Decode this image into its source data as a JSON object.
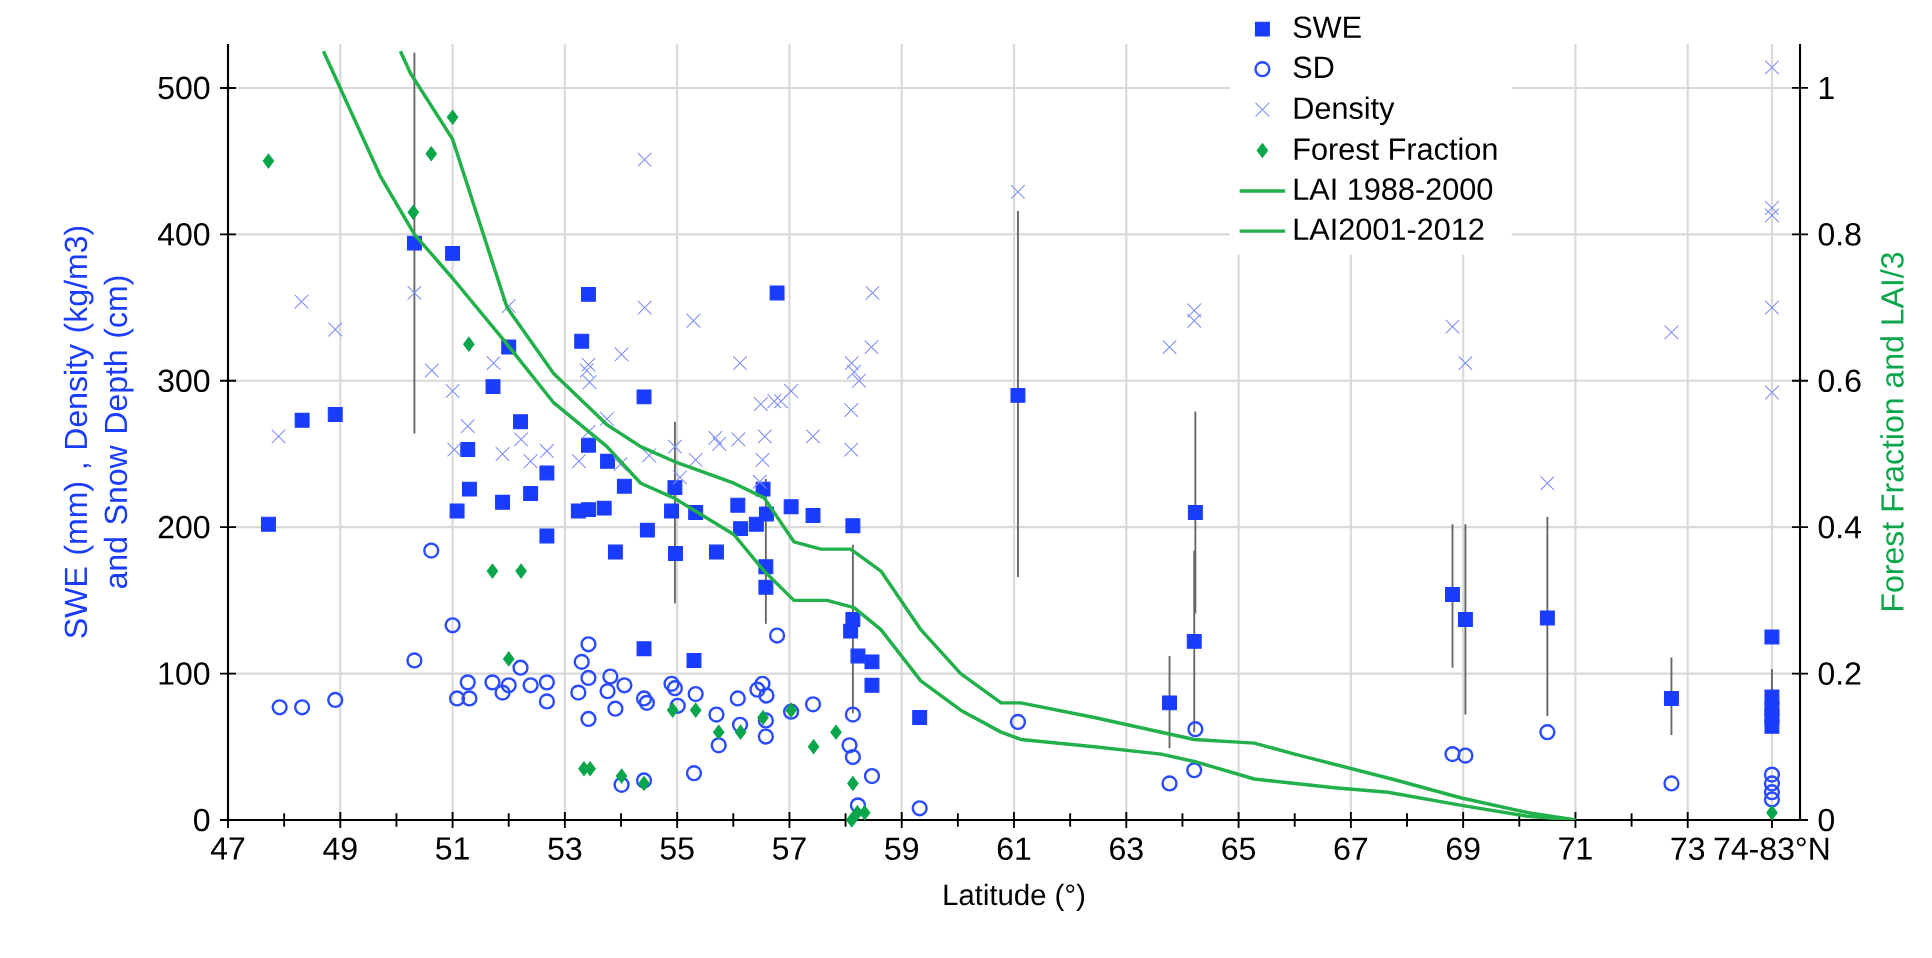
{
  "chart_data": {
    "type": "scatter",
    "xlabel": "Latitude (°)",
    "ylabel": "SWE (mm) , Density (kg/m3) and  Snow Depth (cm)",
    "y2label": "Forest Fraction and LAI/3",
    "xlim": [
      47,
      75
    ],
    "ylim": [
      0,
      530
    ],
    "y2lim": [
      0,
      1.06
    ],
    "xticks": [
      47,
      {
        "value": 48,
        "label": null
      },
      49,
      {
        "value": 50,
        "label": null
      },
      51,
      {
        "value": 52,
        "label": null
      },
      53,
      {
        "value": 54,
        "label": null
      },
      55,
      {
        "value": 56,
        "label": null
      },
      57,
      {
        "value": 58,
        "label": null
      },
      59,
      {
        "value": 60,
        "label": null
      },
      61,
      {
        "value": 62,
        "label": null
      },
      63,
      {
        "value": 64,
        "label": null
      },
      65,
      {
        "value": 66,
        "label": null
      },
      67,
      {
        "value": 68,
        "label": null
      },
      69,
      {
        "value": 70,
        "label": null
      },
      71,
      {
        "value": 72,
        "label": null
      },
      73,
      {
        "value": 74.5,
        "label": "74-83°N"
      }
    ],
    "yticks": [
      0,
      100,
      200,
      300,
      400,
      500
    ],
    "y2ticks": [
      0,
      0.2,
      0.4,
      0.6,
      0.8,
      1
    ],
    "grid": true,
    "legend": "top",
    "series": [
      {
        "name": "SWE",
        "marker": "square",
        "color": "#1a3cff",
        "x": [
          47.72,
          48.32,
          48.91,
          50.32,
          51.0,
          52.0,
          51.72,
          52.21,
          51.27,
          51.08,
          51.3,
          51.89,
          52.39,
          52.68,
          52.68,
          53.42,
          53.3,
          53.42,
          53.24,
          53.42,
          53.7,
          53.76,
          54.06,
          53.9,
          54.41,
          54.41,
          54.47,
          54.96,
          54.9,
          54.97,
          55.33,
          55.3,
          55.7,
          56.08,
          56.13,
          56.41,
          56.53,
          56.59,
          56.58,
          56.58,
          56.78,
          57.03,
          57.42,
          58.13,
          58.13,
          58.09,
          58.22,
          58.47,
          58.47,
          59.32,
          61.07,
          64.23,
          64.21,
          63.77,
          68.81,
          69.04,
          70.5,
          72.71,
          74.5,
          74.5,
          74.5,
          74.5,
          74.5
        ],
        "values": [
          202,
          273,
          277,
          394,
          387,
          323,
          296,
          272,
          253,
          211,
          226,
          217,
          223,
          237,
          194,
          359,
          327,
          256,
          211,
          212,
          213,
          245,
          228,
          183,
          289,
          117,
          198,
          227,
          211,
          182,
          210,
          109,
          183,
          215,
          199,
          202,
          226,
          209,
          173,
          159,
          360,
          214,
          208,
          201,
          137,
          129,
          112,
          108,
          92,
          70,
          290,
          210,
          122,
          80,
          154,
          137,
          138,
          83,
          125,
          84,
          76,
          71,
          64
        ],
        "errors": [
          null,
          null,
          null,
          [
            264,
            524
          ],
          null,
          null,
          null,
          null,
          null,
          null,
          null,
          null,
          null,
          null,
          null,
          null,
          null,
          null,
          null,
          null,
          null,
          null,
          null,
          null,
          null,
          null,
          null,
          [
            148,
            272
          ],
          null,
          null,
          null,
          null,
          null,
          null,
          null,
          null,
          null,
          null,
          [
            134,
            233
          ],
          null,
          null,
          null,
          null,
          null,
          [
            73,
            188
          ],
          null,
          null,
          null,
          null,
          null,
          [
            166,
            416
          ],
          [
            141,
            279
          ],
          [
            60,
            184
          ],
          [
            49,
            112
          ],
          [
            104,
            202
          ],
          [
            72,
            202
          ],
          [
            71,
            207
          ],
          [
            58,
            111
          ],
          null,
          [
            84,
            103
          ],
          null,
          null,
          null
        ]
      },
      {
        "name": "SD",
        "marker": "circle",
        "color": "#2a4bff",
        "x": [
          47.92,
          48.32,
          48.91,
          50.32,
          50.62,
          51.0,
          51.08,
          51.3,
          51.27,
          51.71,
          51.89,
          52.0,
          52.21,
          52.39,
          52.68,
          52.68,
          53.24,
          53.3,
          53.42,
          53.42,
          53.42,
          53.81,
          53.76,
          53.9,
          54.06,
          54.01,
          54.41,
          54.46,
          54.41,
          54.9,
          54.96,
          55.01,
          55.33,
          55.3,
          55.7,
          55.74,
          56.08,
          56.12,
          56.43,
          56.52,
          56.59,
          56.58,
          56.58,
          56.78,
          57.03,
          57.42,
          58.13,
          58.07,
          58.13,
          58.22,
          58.47,
          59.32,
          61.07,
          64.23,
          64.21,
          63.77,
          68.81,
          69.04,
          70.5,
          72.71,
          74.5,
          74.5,
          74.5,
          74.5
        ],
        "values": [
          77,
          77,
          82,
          109,
          184,
          133,
          83,
          83,
          94,
          94,
          87,
          92,
          104,
          92,
          94,
          81,
          87,
          108,
          120,
          97,
          69,
          98,
          88,
          76,
          92,
          24,
          83,
          80,
          27,
          93,
          90,
          78,
          86,
          32,
          72,
          51,
          83,
          65,
          89,
          93,
          85,
          68,
          57,
          126,
          74,
          79,
          72,
          51,
          43,
          10,
          30,
          8,
          67,
          62,
          34,
          25,
          45,
          44,
          60,
          25,
          31,
          25,
          19,
          14
        ]
      },
      {
        "name": "Density",
        "marker": "cross",
        "color": "#7f8ff7",
        "x": [
          47.9,
          48.31,
          48.91,
          50.32,
          50.63,
          51.0,
          52.0,
          51.73,
          51.27,
          51.03,
          51.89,
          52.22,
          52.39,
          52.68,
          53.25,
          53.39,
          53.42,
          53.44,
          53.42,
          53.75,
          54.01,
          54.42,
          54.42,
          53.99,
          54.5,
          54.96,
          55.05,
          55.33,
          55.29,
          55.68,
          55.75,
          56.09,
          56.12,
          56.49,
          56.56,
          56.52,
          56.47,
          56.73,
          56.85,
          57.03,
          57.42,
          58.11,
          58.15,
          58.1,
          58.1,
          58.48,
          58.46,
          58.24,
          61.07,
          63.77,
          64.21,
          64.21,
          68.81,
          69.04,
          70.5,
          72.71,
          74.5,
          74.5,
          74.5,
          74.5,
          74.5
        ],
        "values": [
          262,
          354,
          335,
          360,
          307,
          293,
          351,
          312,
          269,
          253,
          250,
          260,
          245,
          252,
          245,
          307,
          311,
          299,
          265,
          274,
          318,
          451,
          350,
          243,
          249,
          255,
          234,
          246,
          341,
          261,
          257,
          260,
          312,
          284,
          262,
          246,
          231,
          286,
          286,
          293,
          262,
          312,
          306,
          280,
          253,
          360,
          323,
          300,
          429,
          323,
          348,
          341,
          337,
          312,
          230,
          333,
          514,
          418,
          413,
          350,
          292
        ]
      },
      {
        "name": "Forest Fraction",
        "axis": "y2",
        "marker": "diamond",
        "color": "#0aa64b",
        "x": [
          47.72,
          50.3,
          50.62,
          51.0,
          51.29,
          51.71,
          52.22,
          52.0,
          53.34,
          53.45,
          54.01,
          54.41,
          54.92,
          55.33,
          55.74,
          56.13,
          56.53,
          57.03,
          57.43,
          57.83,
          58.13,
          58.11,
          58.21,
          58.34,
          74.5
        ],
        "values": [
          0.9,
          0.83,
          0.91,
          0.96,
          0.65,
          0.34,
          0.34,
          0.22,
          0.07,
          0.07,
          0.06,
          0.05,
          0.15,
          0.15,
          0.12,
          0.12,
          0.14,
          0.15,
          0.1,
          0.12,
          0.05,
          0.0,
          0.01,
          0.01,
          0.01
        ]
      },
      {
        "name": "LAI 1988-2000",
        "type": "line",
        "axis": "y2",
        "marker": "none",
        "line_style": "solid",
        "color": "#22b04b",
        "x": [
          50.07,
          50.25,
          51.0,
          51.97,
          52.8,
          53.75,
          54.35,
          54.94,
          56.01,
          56.55,
          57.08,
          57.56,
          58.09,
          58.63,
          59.34,
          60.05,
          60.77,
          61.12,
          62.43,
          64.21,
          65.28,
          66.0,
          67.78,
          68.97,
          70.16,
          71.0
        ],
        "values": [
          1.05,
          1.02,
          0.93,
          0.7,
          0.61,
          0.54,
          0.51,
          0.49,
          0.46,
          0.44,
          0.38,
          0.37,
          0.37,
          0.34,
          0.26,
          0.2,
          0.16,
          0.16,
          0.14,
          0.11,
          0.105,
          0.09,
          0.055,
          0.03,
          0.01,
          0
        ]
      },
      {
        "name": "LAI2001-2012",
        "type": "line",
        "axis": "y2",
        "marker": "none",
        "line_style": "solid",
        "color": "#22b04b",
        "x": [
          48.7,
          49.71,
          50.32,
          51.0,
          51.97,
          52.8,
          53.75,
          54.35,
          54.94,
          56.01,
          56.55,
          57.08,
          57.67,
          58.15,
          58.63,
          59.34,
          60.05,
          60.77,
          61.12,
          62.43,
          63.62,
          64.21,
          65.28,
          66.71,
          67.66,
          68.97,
          70.16,
          71.0
        ],
        "values": [
          1.05,
          0.88,
          0.8,
          0.74,
          0.65,
          0.57,
          0.51,
          0.46,
          0.44,
          0.39,
          0.34,
          0.3,
          0.3,
          0.29,
          0.26,
          0.19,
          0.15,
          0.12,
          0.11,
          0.1,
          0.09,
          0.08,
          0.056,
          0.044,
          0.038,
          0.02,
          0.005,
          0
        ]
      }
    ]
  }
}
